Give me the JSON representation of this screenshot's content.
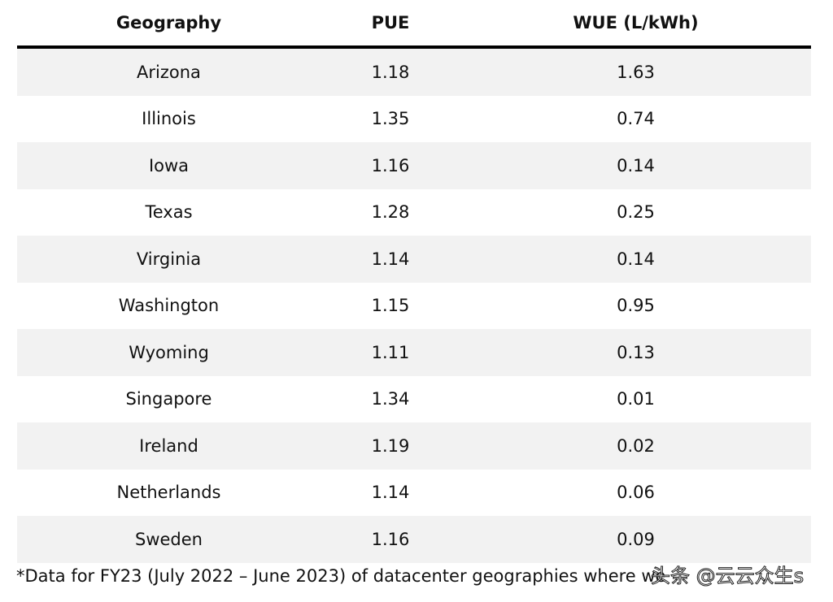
{
  "table": {
    "headers": [
      "Geography",
      "PUE",
      "WUE (L/kWh)"
    ],
    "rows": [
      [
        "Arizona",
        "1.18",
        "1.63"
      ],
      [
        "Illinois",
        "1.35",
        "0.74"
      ],
      [
        "Iowa",
        "1.16",
        "0.14"
      ],
      [
        "Texas",
        "1.28",
        "0.25"
      ],
      [
        "Virginia",
        "1.14",
        "0.14"
      ],
      [
        "Washington",
        "1.15",
        "0.95"
      ],
      [
        "Wyoming",
        "1.11",
        "0.13"
      ],
      [
        "Singapore",
        "1.34",
        "0.01"
      ],
      [
        "Ireland",
        "1.19",
        "0.02"
      ],
      [
        "Netherlands",
        "1.14",
        "0.06"
      ],
      [
        "Sweden",
        "1.16",
        "0.09"
      ]
    ]
  },
  "footnote": "*Data for FY23 (July 2022 – June 2023) of datacenter geographies where we",
  "watermark": "头条 @云云众生s"
}
